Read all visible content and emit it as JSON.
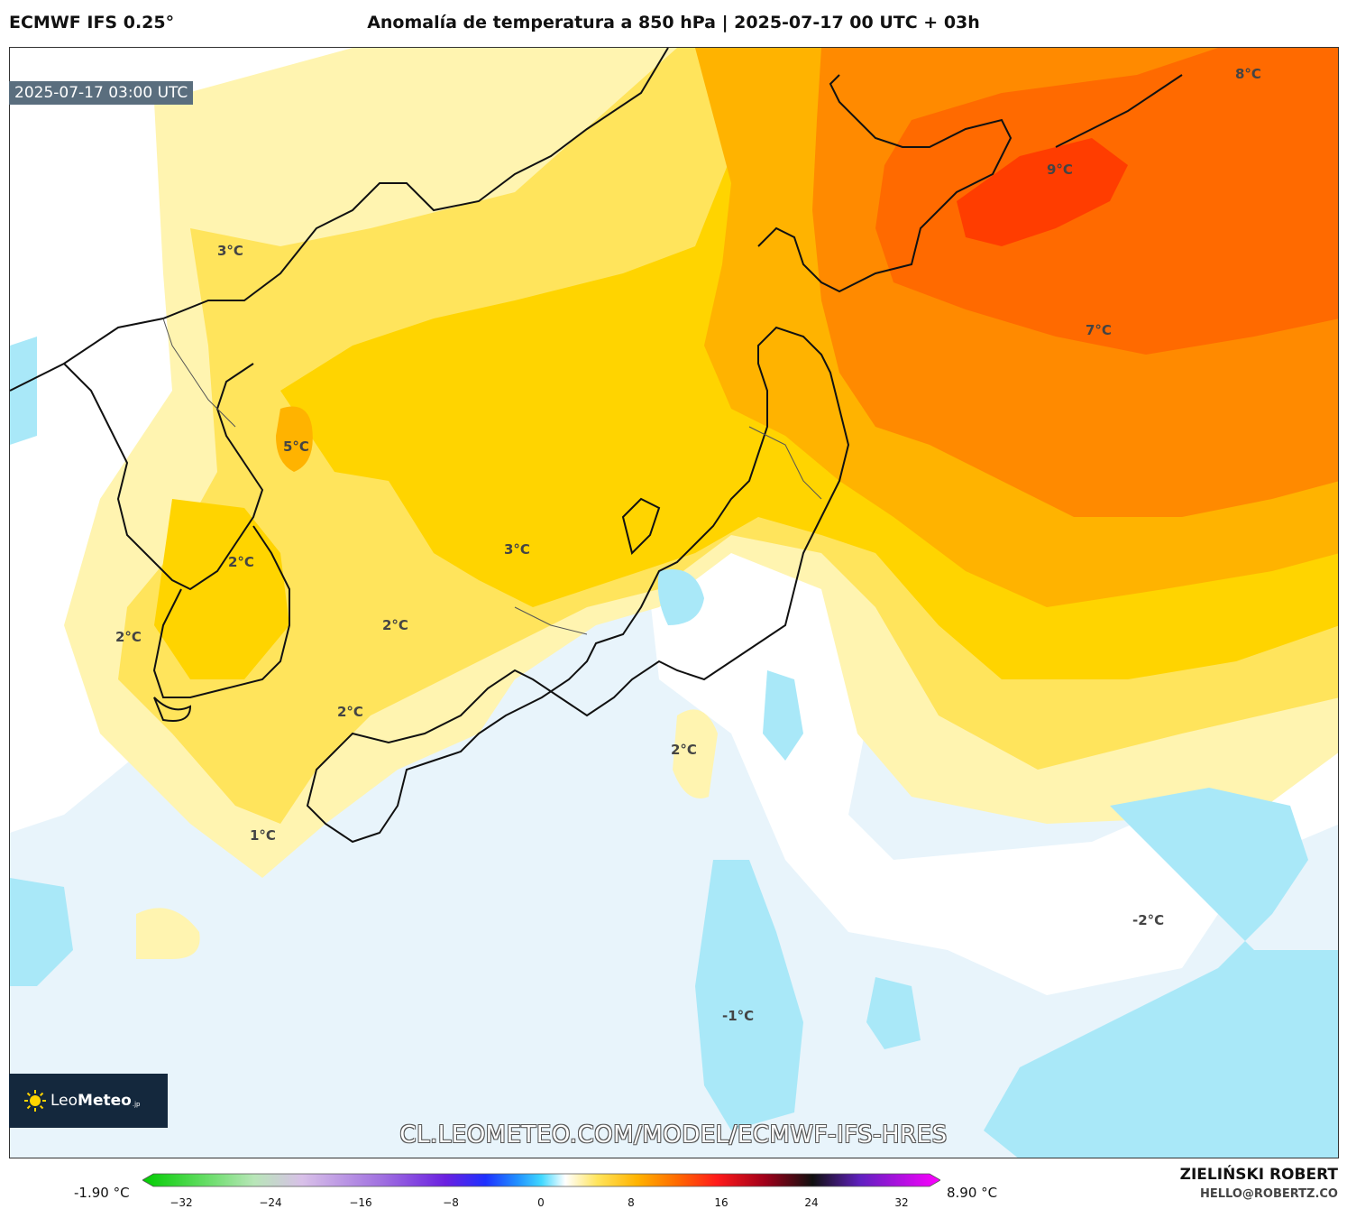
{
  "header": {
    "model": "ECMWF IFS 0.25°",
    "title": "Anomalía de temperatura a 850 hPa | 2025-07-17 00 UTC + 03h"
  },
  "valid_time": "2025-07-17 03:00 UTC",
  "logo": {
    "brand_light": "Leo",
    "brand_bold": "Meteo",
    "suffix": ".jp"
  },
  "url": "CL.LEOMETEO.COM/MODEL/ECMWF-IFS-HRES",
  "labels": [
    "3°C",
    "5°C",
    "2°C",
    "2°C",
    "2°C",
    "2°C",
    "3°C",
    "1°C",
    "2°C",
    "7°C",
    "8°C",
    "9°C",
    "-2°C",
    "-1°C"
  ],
  "colorbar": {
    "min_label": "-1.90 °C",
    "max_label": "8.90 °C",
    "ticks": [
      "−32",
      "−24",
      "−16",
      "−8",
      "0",
      "8",
      "16",
      "24",
      "32"
    ]
  },
  "author": "ZIELIŃSKI ROBERT",
  "email": "HELLO@ROBERTZ.CO",
  "colors": {
    "light_blue": "#e8f4fb",
    "cyan": "#a9e8f8",
    "pale_yellow": "#fff4b0",
    "light_yellow": "#ffe45c",
    "gold": "#ffd400",
    "amber": "#ffb300",
    "orange": "#ff8a00",
    "dark_orange": "#ff6a00",
    "red_orange": "#ff3d00"
  }
}
